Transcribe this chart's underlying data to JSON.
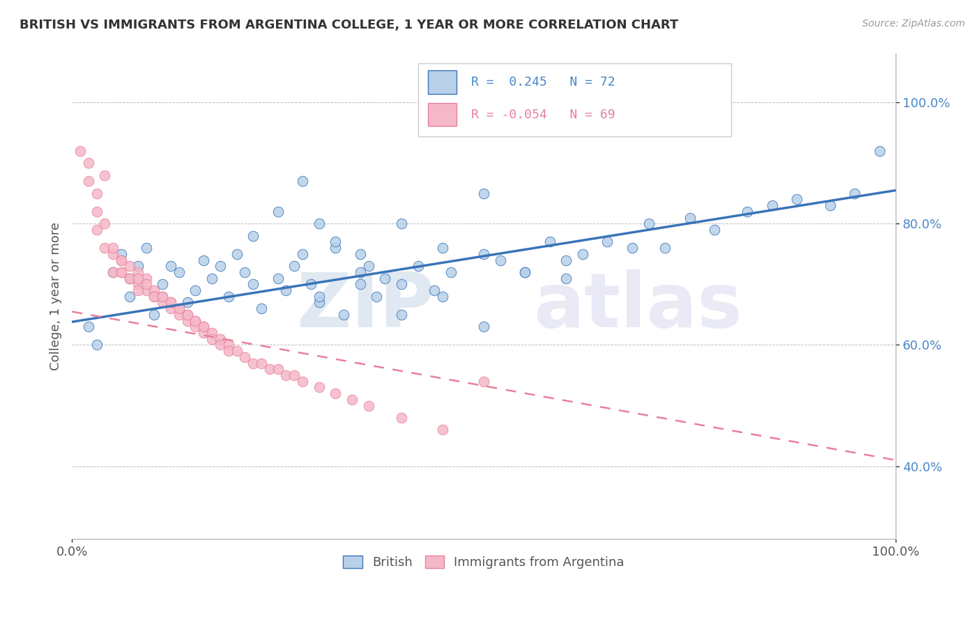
{
  "title": "BRITISH VS IMMIGRANTS FROM ARGENTINA COLLEGE, 1 YEAR OR MORE CORRELATION CHART",
  "source": "Source: ZipAtlas.com",
  "ylabel": "College, 1 year or more",
  "xlim": [
    0.0,
    1.0
  ],
  "ylim": [
    0.28,
    1.08
  ],
  "x_ticks": [
    0.0,
    1.0
  ],
  "x_tick_labels": [
    "0.0%",
    "100.0%"
  ],
  "y_ticks": [
    0.4,
    0.6,
    0.8,
    1.0
  ],
  "y_tick_labels": [
    "40.0%",
    "60.0%",
    "80.0%",
    "100.0%"
  ],
  "blue_color": "#b8d0e8",
  "pink_color": "#f5b8c8",
  "line_blue": "#3a74b8",
  "line_pink": "#e8809a",
  "blue_scatter_x": [
    0.02,
    0.03,
    0.05,
    0.06,
    0.07,
    0.07,
    0.08,
    0.09,
    0.1,
    0.11,
    0.12,
    0.13,
    0.14,
    0.15,
    0.16,
    0.17,
    0.18,
    0.19,
    0.2,
    0.21,
    0.22,
    0.23,
    0.25,
    0.26,
    0.27,
    0.28,
    0.29,
    0.3,
    0.32,
    0.33,
    0.35,
    0.36,
    0.37,
    0.38,
    0.4,
    0.42,
    0.44,
    0.46,
    0.5,
    0.52,
    0.55,
    0.58,
    0.6,
    0.62,
    0.65,
    0.68,
    0.7,
    0.72,
    0.75,
    0.78,
    0.82,
    0.85,
    0.88,
    0.92,
    0.95,
    0.98,
    0.3,
    0.32,
    0.35,
    0.4,
    0.45,
    0.5,
    0.3,
    0.35,
    0.4,
    0.45,
    0.5,
    0.55,
    0.6,
    0.22,
    0.25,
    0.28
  ],
  "blue_scatter_y": [
    0.63,
    0.6,
    0.72,
    0.75,
    0.68,
    0.71,
    0.73,
    0.76,
    0.65,
    0.7,
    0.73,
    0.72,
    0.67,
    0.69,
    0.74,
    0.71,
    0.73,
    0.68,
    0.75,
    0.72,
    0.7,
    0.66,
    0.71,
    0.69,
    0.73,
    0.75,
    0.7,
    0.67,
    0.76,
    0.65,
    0.72,
    0.73,
    0.68,
    0.71,
    0.7,
    0.73,
    0.69,
    0.72,
    0.75,
    0.74,
    0.72,
    0.77,
    0.74,
    0.75,
    0.77,
    0.76,
    0.8,
    0.76,
    0.81,
    0.79,
    0.82,
    0.83,
    0.84,
    0.83,
    0.85,
    0.92,
    0.8,
    0.77,
    0.75,
    0.8,
    0.76,
    0.85,
    0.68,
    0.7,
    0.65,
    0.68,
    0.63,
    0.72,
    0.71,
    0.78,
    0.82,
    0.87
  ],
  "pink_scatter_x": [
    0.01,
    0.02,
    0.02,
    0.03,
    0.03,
    0.04,
    0.04,
    0.05,
    0.05,
    0.06,
    0.06,
    0.07,
    0.07,
    0.08,
    0.08,
    0.09,
    0.09,
    0.1,
    0.1,
    0.11,
    0.11,
    0.12,
    0.12,
    0.13,
    0.13,
    0.14,
    0.14,
    0.15,
    0.15,
    0.16,
    0.16,
    0.17,
    0.17,
    0.18,
    0.18,
    0.19,
    0.19,
    0.2,
    0.21,
    0.22,
    0.23,
    0.24,
    0.25,
    0.26,
    0.27,
    0.28,
    0.3,
    0.32,
    0.34,
    0.36,
    0.4,
    0.45,
    0.5,
    0.03,
    0.05,
    0.06,
    0.06,
    0.07,
    0.08,
    0.08,
    0.09,
    0.1,
    0.11,
    0.12,
    0.13,
    0.14,
    0.15,
    0.16,
    0.04
  ],
  "pink_scatter_y": [
    0.92,
    0.9,
    0.87,
    0.85,
    0.82,
    0.8,
    0.76,
    0.75,
    0.72,
    0.74,
    0.72,
    0.73,
    0.71,
    0.72,
    0.7,
    0.71,
    0.69,
    0.69,
    0.68,
    0.68,
    0.67,
    0.66,
    0.67,
    0.66,
    0.65,
    0.65,
    0.64,
    0.64,
    0.63,
    0.63,
    0.62,
    0.62,
    0.61,
    0.61,
    0.6,
    0.6,
    0.59,
    0.59,
    0.58,
    0.57,
    0.57,
    0.56,
    0.56,
    0.55,
    0.55,
    0.54,
    0.53,
    0.52,
    0.51,
    0.5,
    0.48,
    0.46,
    0.54,
    0.79,
    0.76,
    0.74,
    0.72,
    0.71,
    0.71,
    0.69,
    0.7,
    0.68,
    0.68,
    0.67,
    0.66,
    0.65,
    0.64,
    0.63,
    0.88
  ],
  "blue_trend_x": [
    0.0,
    1.0
  ],
  "blue_trend_y": [
    0.638,
    0.855
  ],
  "pink_trend_x": [
    0.0,
    1.0
  ],
  "pink_trend_y": [
    0.655,
    0.41
  ]
}
